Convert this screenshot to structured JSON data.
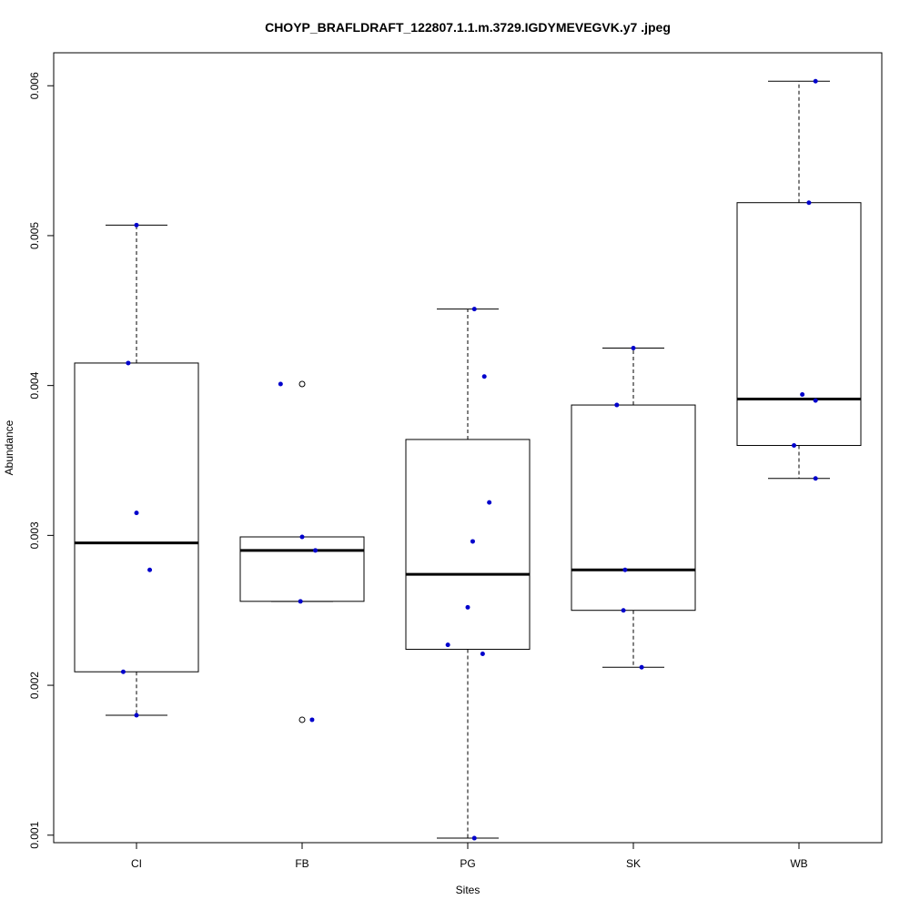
{
  "chart_data": {
    "type": "box",
    "title": "CHOYP_BRAFLDRAFT_122807.1.1.m.3729.IGDYMEVEGVK.y7 .jpeg",
    "xlabel": "Sites",
    "ylabel": "Abundance",
    "ylim": [
      0.00095,
      0.00622
    ],
    "yticks": [
      0.001,
      0.002,
      0.003,
      0.004,
      0.005,
      0.006
    ],
    "ytick_labels": [
      "0.001",
      "0.002",
      "0.003",
      "0.004",
      "0.005",
      "0.006"
    ],
    "categories": [
      "CI",
      "FB",
      "PG",
      "SK",
      "WB"
    ],
    "boxes": [
      {
        "category": "CI",
        "whisker_low": 0.0018,
        "q1": 0.00209,
        "median": 0.00295,
        "q3": 0.00415,
        "whisker_high": 0.00507,
        "outliers": []
      },
      {
        "category": "FB",
        "whisker_low": 0.00256,
        "q1": 0.00256,
        "median": 0.0029,
        "q3": 0.00299,
        "whisker_high": 0.00299,
        "outliers": [
          0.00177,
          0.00401
        ]
      },
      {
        "category": "PG",
        "whisker_low": 0.00098,
        "q1": 0.00224,
        "median": 0.00274,
        "q3": 0.00364,
        "whisker_high": 0.00451,
        "outliers": []
      },
      {
        "category": "SK",
        "whisker_low": 0.00212,
        "q1": 0.0025,
        "median": 0.00277,
        "q3": 0.00387,
        "whisker_high": 0.00425,
        "outliers": []
      },
      {
        "category": "WB",
        "whisker_low": 0.00338,
        "q1": 0.0036,
        "median": 0.00391,
        "q3": 0.00522,
        "whisker_high": 0.00603,
        "outliers": []
      }
    ],
    "points": [
      {
        "category": "CI",
        "values": [
          0.00507,
          0.00415,
          0.00315,
          0.00277,
          0.00209,
          0.0018
        ],
        "jitter": [
          0.0,
          -0.05,
          0.0,
          0.08,
          -0.08,
          0.0
        ]
      },
      {
        "category": "FB",
        "values": [
          0.00401,
          0.00299,
          0.0029,
          0.00256,
          0.00177
        ],
        "jitter": [
          -0.13,
          0.0,
          0.08,
          -0.01,
          0.06
        ]
      },
      {
        "category": "PG",
        "values": [
          0.00451,
          0.00406,
          0.00322,
          0.00296,
          0.00252,
          0.00227,
          0.00221,
          0.00098
        ],
        "jitter": [
          0.04,
          0.1,
          0.13,
          0.03,
          0.0,
          -0.12,
          0.09,
          0.04
        ]
      },
      {
        "category": "SK",
        "values": [
          0.00425,
          0.00387,
          0.00277,
          0.0025,
          0.00212
        ],
        "jitter": [
          0.0,
          -0.1,
          -0.05,
          -0.06,
          0.05
        ]
      },
      {
        "category": "WB",
        "values": [
          0.00603,
          0.00522,
          0.00394,
          0.0039,
          0.0036,
          0.00338
        ],
        "jitter": [
          0.1,
          0.06,
          0.02,
          0.1,
          -0.03,
          0.1
        ]
      }
    ],
    "point_color": "#0000cc",
    "box_fill": "#ffffff",
    "line_color": "#000000",
    "grid": false,
    "legend": "none"
  }
}
